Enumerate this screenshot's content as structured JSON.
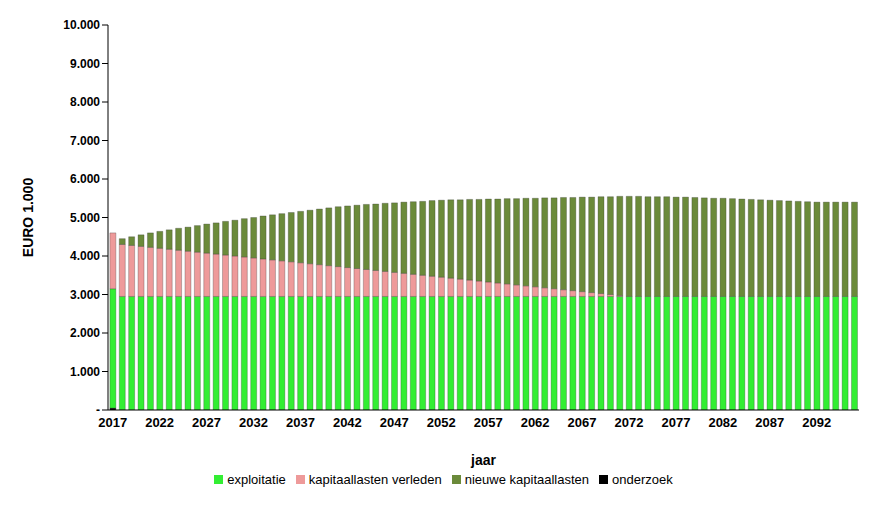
{
  "chart_data": {
    "type": "bar",
    "stacked": true,
    "x_label": "jaar",
    "y_label": "EURO 1.000",
    "grid": false,
    "legend": "bottom",
    "categories": [
      "2017",
      null,
      null,
      null,
      null,
      "2022",
      null,
      null,
      null,
      null,
      "2027",
      null,
      null,
      null,
      null,
      "2032",
      null,
      null,
      null,
      null,
      "2037",
      null,
      null,
      null,
      null,
      "2042",
      null,
      null,
      null,
      null,
      "2047",
      null,
      null,
      null,
      null,
      "2052",
      null,
      null,
      null,
      null,
      "2057",
      null,
      null,
      null,
      null,
      "2062",
      null,
      null,
      null,
      null,
      "2067",
      null,
      null,
      null,
      null,
      "2072",
      null,
      null,
      null,
      null,
      "2077",
      null,
      null,
      null,
      null,
      "2082",
      null,
      null,
      null,
      null,
      "2087",
      null,
      null,
      null,
      null,
      "2092",
      null,
      null,
      null,
      null
    ],
    "ylim": [
      0,
      10000
    ],
    "yticks": [
      {
        "value": 0,
        "label": "-"
      },
      {
        "value": 1000,
        "label": "1.000"
      },
      {
        "value": 2000,
        "label": "2.000"
      },
      {
        "value": 3000,
        "label": "3.000"
      },
      {
        "value": 4000,
        "label": "4.000"
      },
      {
        "value": 5000,
        "label": "5.000"
      },
      {
        "value": 6000,
        "label": "6.000"
      },
      {
        "value": 7000,
        "label": "7.000"
      },
      {
        "value": 8000,
        "label": "8.000"
      },
      {
        "value": 9000,
        "label": "9.000"
      },
      {
        "value": 10000,
        "label": "10.000"
      }
    ],
    "series": [
      {
        "name": "onderzoek",
        "color": "#000000",
        "values": [
          50,
          0,
          0,
          0,
          0,
          0,
          0,
          0,
          0,
          0,
          0,
          0,
          0,
          0,
          0,
          0,
          0,
          0,
          0,
          0,
          0,
          0,
          0,
          0,
          0,
          0,
          0,
          0,
          0,
          0,
          0,
          0,
          0,
          0,
          0,
          0,
          0,
          0,
          0,
          0,
          0,
          0,
          0,
          0,
          0,
          0,
          0,
          0,
          0,
          0,
          0,
          0,
          0,
          0,
          0,
          0,
          0,
          0,
          0,
          0,
          0,
          0,
          0,
          0,
          0,
          0,
          0,
          0,
          0,
          0,
          0,
          0,
          0,
          0,
          0,
          0,
          0,
          0,
          0,
          0
        ]
      },
      {
        "name": "exploitatie",
        "color": "#33ee33",
        "values": [
          3100,
          2950,
          2950,
          2950,
          2950,
          2950,
          2950,
          2950,
          2950,
          2950,
          2950,
          2950,
          2950,
          2950,
          2950,
          2950,
          2950,
          2950,
          2950,
          2950,
          2950,
          2950,
          2950,
          2950,
          2950,
          2950,
          2950,
          2950,
          2950,
          2950,
          2950,
          2950,
          2950,
          2950,
          2950,
          2950,
          2950,
          2950,
          2950,
          2950,
          2950,
          2950,
          2950,
          2950,
          2950,
          2950,
          2950,
          2950,
          2950,
          2950,
          2950,
          2950,
          2950,
          2950,
          2950,
          2950,
          2950,
          2950,
          2950,
          2950,
          2950,
          2950,
          2950,
          2950,
          2950,
          2950,
          2950,
          2950,
          2950,
          2950,
          2950,
          2950,
          2950,
          2950,
          2950,
          2950,
          2950,
          2950,
          2950,
          2950
        ]
      },
      {
        "name": "kapitaallasten verleden",
        "color": "#ee9a9a",
        "values": [
          1450,
          1350,
          1325,
          1300,
          1275,
          1250,
          1225,
          1200,
          1175,
          1150,
          1125,
          1100,
          1075,
          1050,
          1025,
          1000,
          975,
          950,
          925,
          900,
          875,
          850,
          825,
          800,
          775,
          750,
          725,
          700,
          675,
          650,
          625,
          600,
          575,
          550,
          525,
          500,
          475,
          450,
          425,
          400,
          375,
          350,
          325,
          300,
          275,
          250,
          225,
          200,
          175,
          150,
          125,
          100,
          75,
          50,
          25,
          0,
          0,
          0,
          0,
          0,
          0,
          0,
          0,
          0,
          0,
          0,
          0,
          0,
          0,
          0,
          0,
          0,
          0,
          0,
          0,
          0,
          0,
          0,
          0,
          0
        ]
      },
      {
        "name": "nieuwe kapitaallasten",
        "color": "#6b8a3a",
        "values": [
          0,
          150,
          225,
          300,
          375,
          440,
          505,
          570,
          625,
          690,
          755,
          810,
          875,
          930,
          995,
          1050,
          1115,
          1170,
          1225,
          1280,
          1335,
          1390,
          1445,
          1500,
          1555,
          1600,
          1645,
          1690,
          1725,
          1770,
          1805,
          1850,
          1885,
          1920,
          1965,
          2000,
          2035,
          2060,
          2095,
          2120,
          2155,
          2180,
          2215,
          2240,
          2275,
          2300,
          2335,
          2360,
          2395,
          2420,
          2455,
          2480,
          2515,
          2540,
          2575,
          2600,
          2600,
          2590,
          2590,
          2590,
          2580,
          2580,
          2570,
          2560,
          2550,
          2550,
          2540,
          2530,
          2520,
          2510,
          2500,
          2490,
          2480,
          2470,
          2460,
          2450,
          2450,
          2450,
          2450,
          2450
        ]
      }
    ]
  }
}
